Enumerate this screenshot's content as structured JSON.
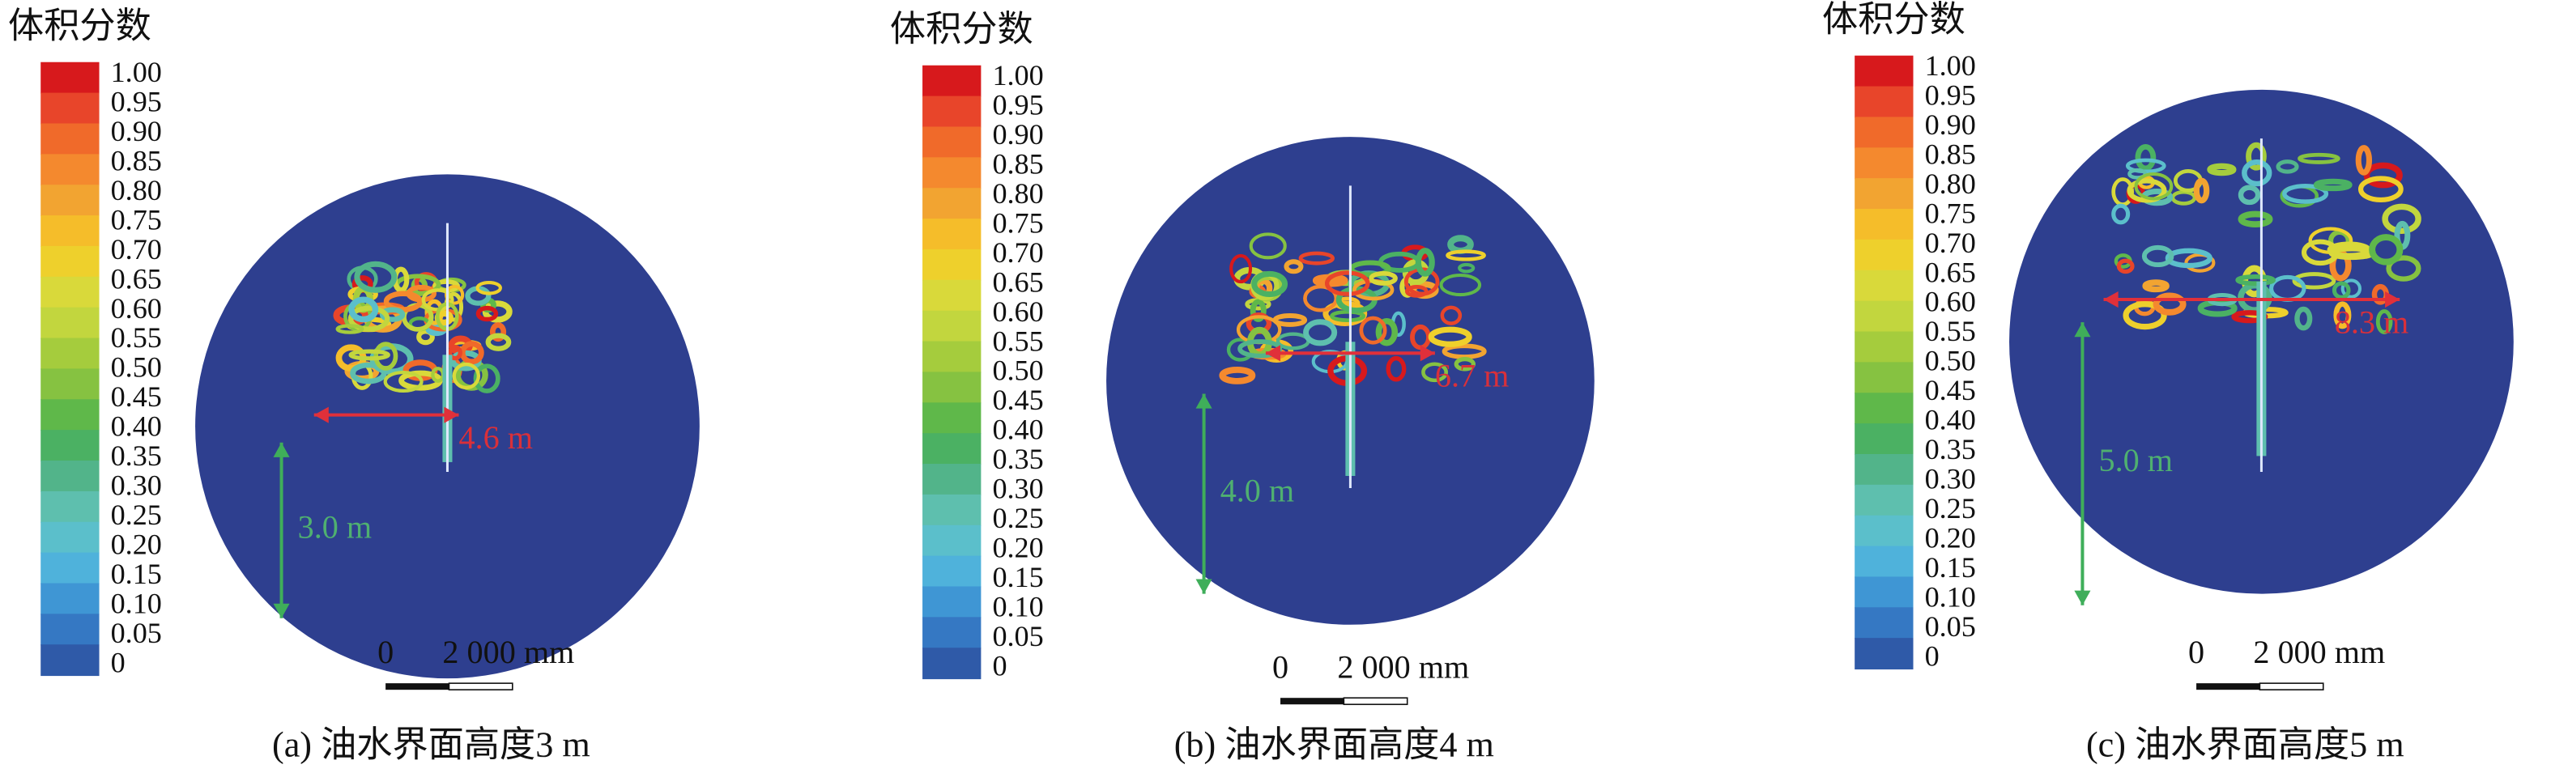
{
  "panels": [
    {
      "legend_title": "体积分数",
      "legend_ticks": [
        "1.00",
        "0.95",
        "0.90",
        "0.85",
        "0.80",
        "0.75",
        "0.70",
        "0.65",
        "0.60",
        "0.55",
        "0.50",
        "0.45",
        "0.40",
        "0.35",
        "0.30",
        "0.25",
        "0.20",
        "0.15",
        "0.10",
        "0.05",
        "0"
      ],
      "width_label": "4.6 m",
      "height_label": "3.0 m",
      "scale_start": "0",
      "scale_end": "2 000 mm",
      "caption": "(a) 油水界面高度3 m"
    },
    {
      "legend_title": "体积分数",
      "legend_ticks": [
        "1.00",
        "0.95",
        "0.90",
        "0.85",
        "0.80",
        "0.75",
        "0.70",
        "0.65",
        "0.60",
        "0.55",
        "0.50",
        "0.45",
        "0.40",
        "0.35",
        "0.30",
        "0.25",
        "0.20",
        "0.15",
        "0.10",
        "0.05",
        "0"
      ],
      "width_label": "6.7 m",
      "height_label": "4.0 m",
      "scale_start": "0",
      "scale_end": "2 000 mm",
      "caption": "(b) 油水界面高度4 m"
    },
    {
      "legend_title": "体积分数",
      "legend_ticks": [
        "1.00",
        "0.95",
        "0.90",
        "0.85",
        "0.80",
        "0.75",
        "0.70",
        "0.65",
        "0.60",
        "0.55",
        "0.50",
        "0.45",
        "0.40",
        "0.35",
        "0.30",
        "0.25",
        "0.20",
        "0.15",
        "0.10",
        "0.05",
        "0"
      ],
      "width_label": "8.3 m",
      "height_label": "5.0 m",
      "scale_start": "0",
      "scale_end": "2 000 mm",
      "caption": "(c) 油水界面高度5 m"
    }
  ]
}
